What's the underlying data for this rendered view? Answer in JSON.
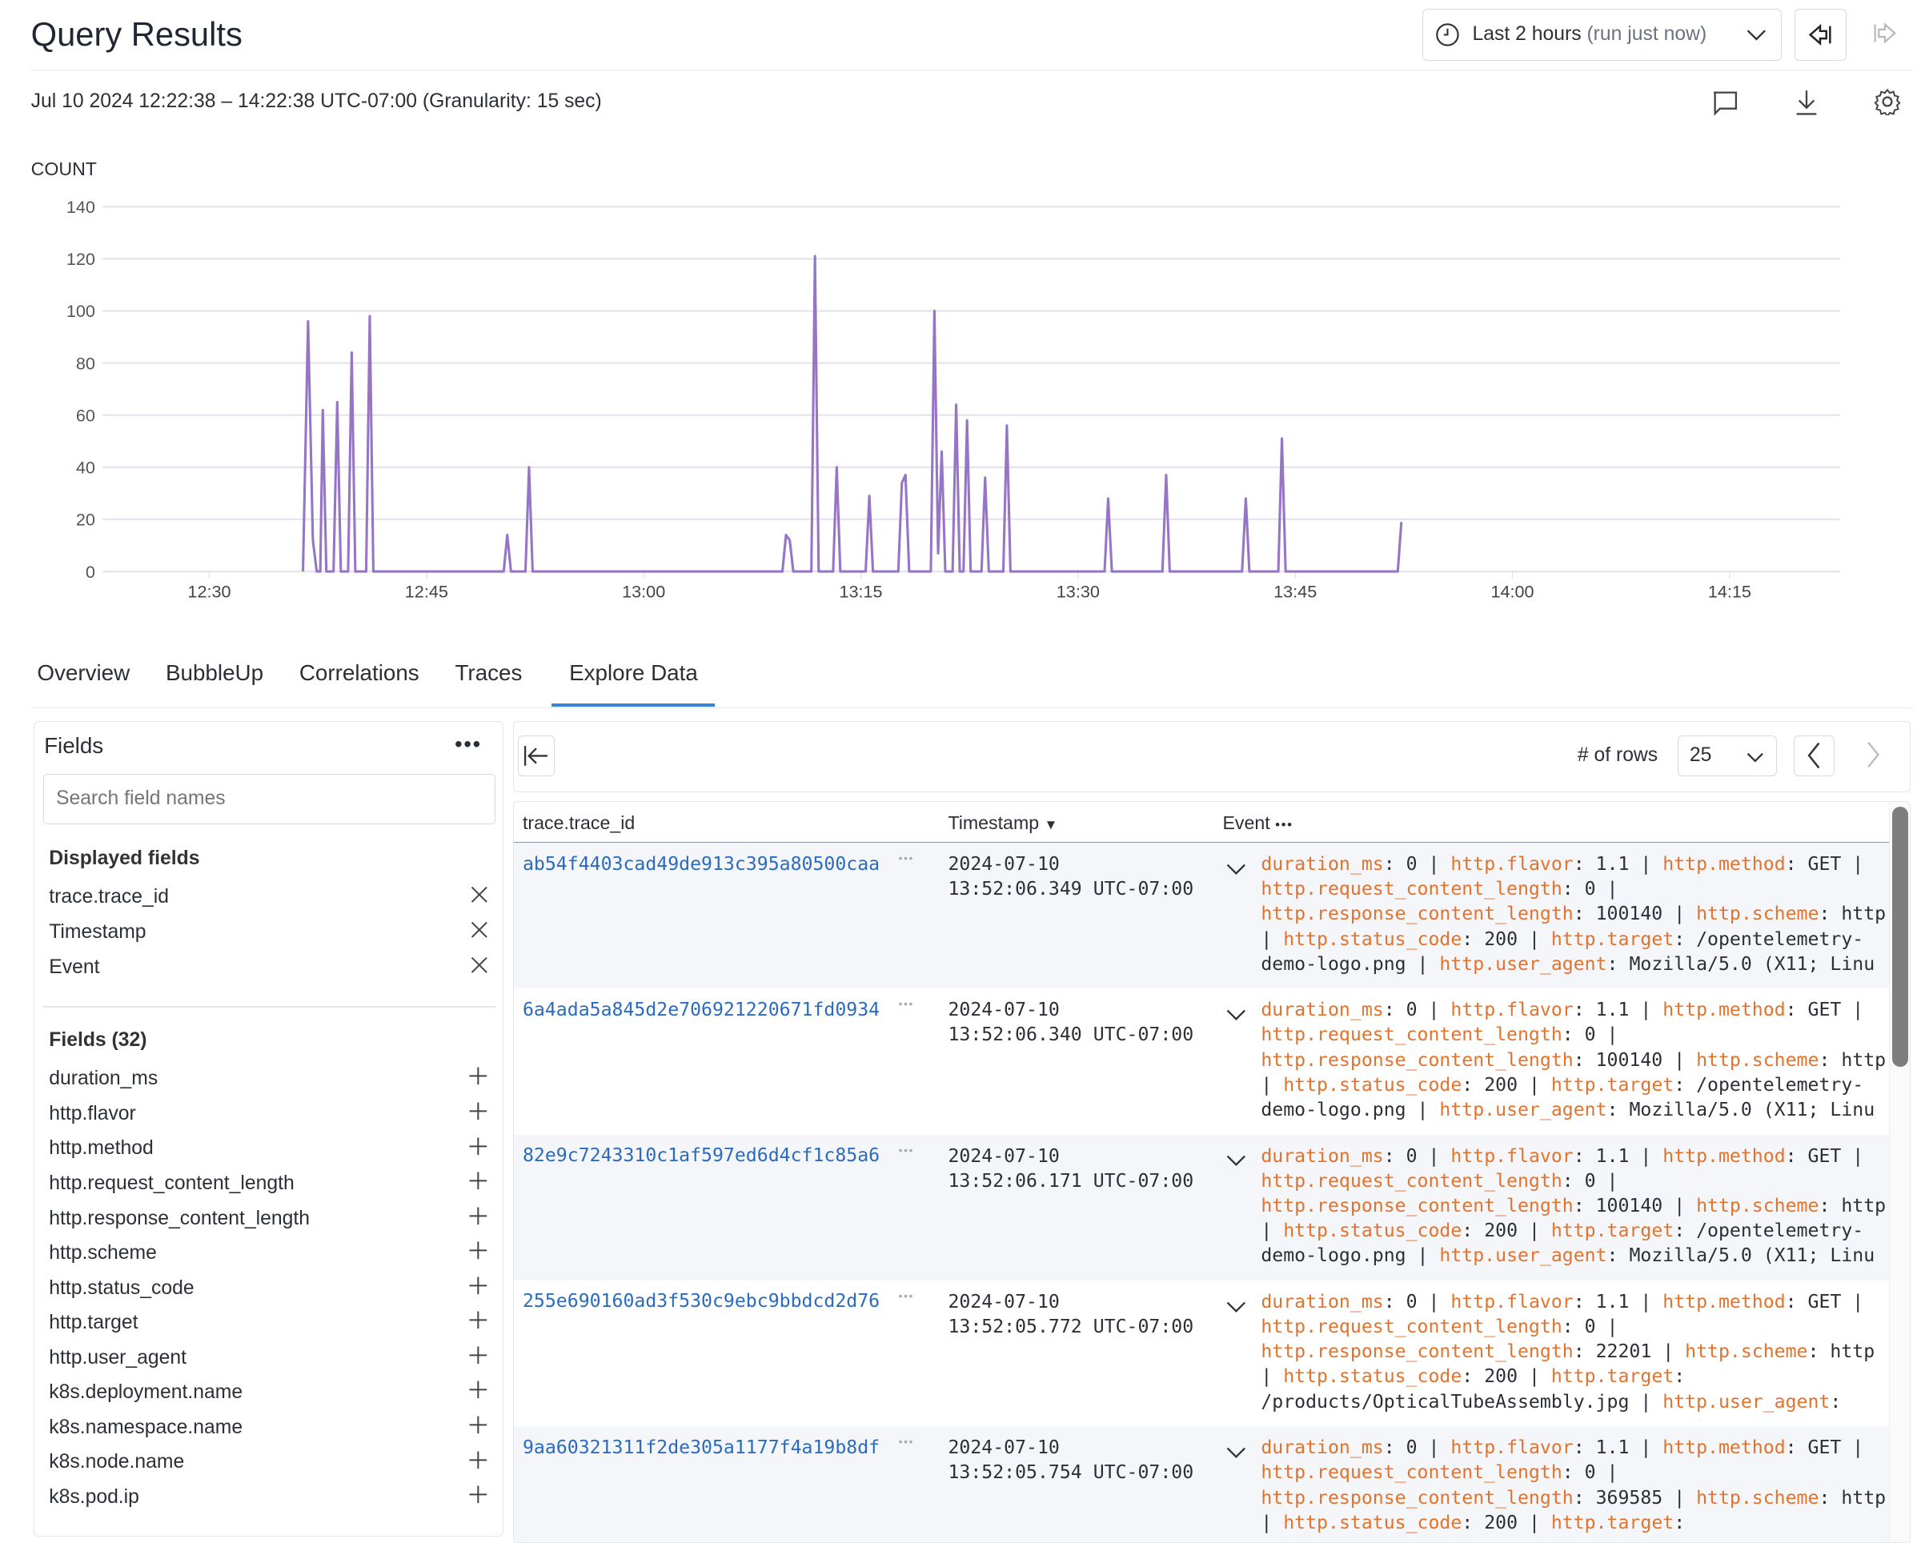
{
  "header": {
    "title": "Query Results",
    "time_range": {
      "label": "Last 2 hours",
      "suffix": "(run just now)"
    },
    "range_text": "Jul 10 2024 12:22:38 – 14:22:38 UTC-07:00 (Granularity: 15 sec)",
    "icons": [
      "clock-icon",
      "chevron-down-icon",
      "back-icon",
      "forward-icon",
      "comment-icon",
      "download-icon",
      "gear-icon"
    ]
  },
  "chart_data": {
    "type": "line",
    "title": "COUNT",
    "ylim": [
      0,
      140
    ],
    "yticks": [
      "0",
      "20",
      "40",
      "60",
      "80",
      "100",
      "120",
      "140"
    ],
    "xlim": [
      "12:22:38",
      "14:22:38"
    ],
    "xticks": [
      "12:30",
      "12:45",
      "13:00",
      "13:15",
      "13:30",
      "13:45",
      "14:00",
      "14:15"
    ],
    "grid": true,
    "color": "#9775c6",
    "points": [
      [
        "12:36:28",
        0
      ],
      [
        "12:36:49",
        96
      ],
      [
        "12:37:09",
        12
      ],
      [
        "12:37:25",
        0
      ],
      [
        "12:37:40",
        0
      ],
      [
        "12:37:50",
        62
      ],
      [
        "12:38:05",
        0
      ],
      [
        "12:38:35",
        0
      ],
      [
        "12:38:50",
        65
      ],
      [
        "12:39:05",
        0
      ],
      [
        "12:39:35",
        0
      ],
      [
        "12:39:50",
        84
      ],
      [
        "12:40:05",
        0
      ],
      [
        "12:40:50",
        0
      ],
      [
        "12:41:05",
        98
      ],
      [
        "12:41:20",
        0
      ],
      [
        "12:50:20",
        0
      ],
      [
        "12:50:35",
        14
      ],
      [
        "12:50:50",
        0
      ],
      [
        "12:51:50",
        0
      ],
      [
        "12:52:05",
        40
      ],
      [
        "12:52:20",
        0
      ],
      [
        "13:09:35",
        0
      ],
      [
        "13:09:50",
        14
      ],
      [
        "13:10:05",
        12
      ],
      [
        "13:10:20",
        0
      ],
      [
        "13:11:35",
        0
      ],
      [
        "13:11:50",
        121
      ],
      [
        "13:12:05",
        0
      ],
      [
        "13:13:05",
        0
      ],
      [
        "13:13:20",
        40
      ],
      [
        "13:13:35",
        0
      ],
      [
        "13:15:20",
        0
      ],
      [
        "13:15:35",
        29
      ],
      [
        "13:15:50",
        0
      ],
      [
        "13:17:35",
        0
      ],
      [
        "13:17:50",
        34
      ],
      [
        "13:18:05",
        37
      ],
      [
        "13:18:20",
        0
      ],
      [
        "13:19:50",
        0
      ],
      [
        "13:20:05",
        100
      ],
      [
        "13:20:20",
        7
      ],
      [
        "13:20:35",
        46
      ],
      [
        "13:20:50",
        0
      ],
      [
        "13:21:20",
        0
      ],
      [
        "13:21:35",
        64
      ],
      [
        "13:21:50",
        0
      ],
      [
        "13:22:05",
        0
      ],
      [
        "13:22:20",
        58
      ],
      [
        "13:22:35",
        0
      ],
      [
        "13:23:20",
        0
      ],
      [
        "13:23:35",
        36
      ],
      [
        "13:23:50",
        0
      ],
      [
        "13:24:50",
        0
      ],
      [
        "13:25:05",
        56
      ],
      [
        "13:25:20",
        0
      ],
      [
        "13:31:50",
        0
      ],
      [
        "13:32:05",
        28
      ],
      [
        "13:32:20",
        0
      ],
      [
        "13:35:50",
        0
      ],
      [
        "13:36:05",
        37
      ],
      [
        "13:36:20",
        0
      ],
      [
        "13:41:20",
        0
      ],
      [
        "13:41:35",
        28
      ],
      [
        "13:41:50",
        0
      ],
      [
        "13:43:50",
        0
      ],
      [
        "13:44:05",
        51
      ],
      [
        "13:44:20",
        0
      ],
      [
        "13:52:05",
        0
      ],
      [
        "13:52:20",
        19
      ]
    ]
  },
  "tabs": [
    {
      "label": "Overview"
    },
    {
      "label": "BubbleUp"
    },
    {
      "label": "Correlations"
    },
    {
      "label": "Traces"
    },
    {
      "label": "Explore Data",
      "active": true
    }
  ],
  "fields_panel": {
    "title": "Fields",
    "search_placeholder": "Search field names",
    "displayed_title": "Displayed fields",
    "displayed": [
      "trace.trace_id",
      "Timestamp",
      "Event"
    ],
    "all_title": "Fields (32)",
    "all": [
      "duration_ms",
      "http.flavor",
      "http.method",
      "http.request_content_length",
      "http.response_content_length",
      "http.scheme",
      "http.status_code",
      "http.target",
      "http.user_agent",
      "k8s.deployment.name",
      "k8s.namespace.name",
      "k8s.node.name",
      "k8s.pod.ip"
    ]
  },
  "table": {
    "rows_label": "# of rows",
    "rows_value": "25",
    "columns": [
      "trace.trace_id",
      "Timestamp",
      "Event"
    ],
    "rows": [
      {
        "trace_id": "ab54f4403cad49de913c395a80500caa",
        "date": "2024-07-10",
        "time": "13:52:06.349 UTC-07:00",
        "event": [
          [
            "duration_ms",
            "0"
          ],
          [
            "http.flavor",
            "1.1"
          ],
          [
            "http.method",
            "GET"
          ],
          [
            "http.request_content_length",
            "0"
          ],
          [
            "http.response_content_length",
            "100140"
          ],
          [
            "http.scheme",
            "http"
          ],
          [
            "http.status_code",
            "200"
          ],
          [
            "http.target",
            "/opentelemetry-demo-logo.png"
          ],
          [
            "http.user_agent",
            "Mozilla/5.0 (X11; Linu"
          ]
        ]
      },
      {
        "trace_id": "6a4ada5a845d2e706921220671fd0934",
        "date": "2024-07-10",
        "time": "13:52:06.340 UTC-07:00",
        "event": [
          [
            "duration_ms",
            "0"
          ],
          [
            "http.flavor",
            "1.1"
          ],
          [
            "http.method",
            "GET"
          ],
          [
            "http.request_content_length",
            "0"
          ],
          [
            "http.response_content_length",
            "100140"
          ],
          [
            "http.scheme",
            "http"
          ],
          [
            "http.status_code",
            "200"
          ],
          [
            "http.target",
            "/opentelemetry-demo-logo.png"
          ],
          [
            "http.user_agent",
            "Mozilla/5.0 (X11; Linu"
          ]
        ]
      },
      {
        "trace_id": "82e9c7243310c1af597ed6d4cf1c85a6",
        "date": "2024-07-10",
        "time": "13:52:06.171 UTC-07:00",
        "event": [
          [
            "duration_ms",
            "0"
          ],
          [
            "http.flavor",
            "1.1"
          ],
          [
            "http.method",
            "GET"
          ],
          [
            "http.request_content_length",
            "0"
          ],
          [
            "http.response_content_length",
            "100140"
          ],
          [
            "http.scheme",
            "http"
          ],
          [
            "http.status_code",
            "200"
          ],
          [
            "http.target",
            "/opentelemetry-demo-logo.png"
          ],
          [
            "http.user_agent",
            "Mozilla/5.0 (X11; Linu"
          ]
        ]
      },
      {
        "trace_id": "255e690160ad3f530c9ebc9bbdcd2d76",
        "date": "2024-07-10",
        "time": "13:52:05.772 UTC-07:00",
        "event": [
          [
            "duration_ms",
            "0"
          ],
          [
            "http.flavor",
            "1.1"
          ],
          [
            "http.method",
            "GET"
          ],
          [
            "http.request_content_length",
            "0"
          ],
          [
            "http.response_content_length",
            "22201"
          ],
          [
            "http.scheme",
            "http"
          ],
          [
            "http.status_code",
            "200"
          ],
          [
            "http.target",
            "/products/OpticalTubeAssembly.jpg"
          ],
          [
            "http.user_agent",
            ""
          ]
        ]
      },
      {
        "trace_id": "9aa60321311f2de305a1177f4a19b8df",
        "date": "2024-07-10",
        "time": "13:52:05.754 UTC-07:00",
        "event": [
          [
            "duration_ms",
            "0"
          ],
          [
            "http.flavor",
            "1.1"
          ],
          [
            "http.method",
            "GET"
          ],
          [
            "http.request_content_length",
            "0"
          ],
          [
            "http.response_content_length",
            "369585"
          ],
          [
            "http.scheme",
            "http"
          ],
          [
            "http.status_code",
            "200"
          ],
          [
            "http.target",
            ""
          ]
        ]
      }
    ]
  },
  "colors": {
    "accent": "#3b82d8",
    "series": "#9775c6",
    "key": "#e3732c",
    "link": "#2a6bbf"
  }
}
